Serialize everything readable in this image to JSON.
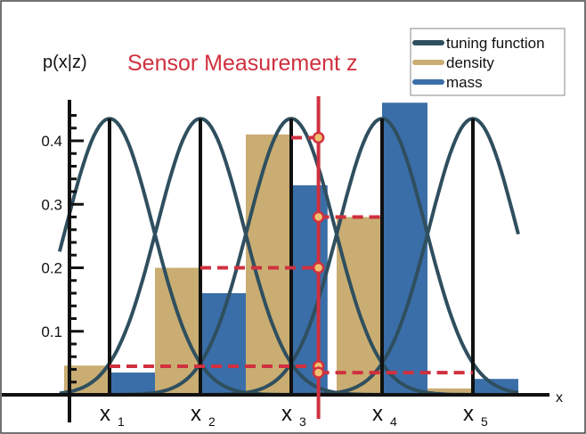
{
  "chart_data": {
    "type": "bar",
    "title": "Sensor Measurement z",
    "ylabel": "p(x|z)",
    "xlabel": "x",
    "ylim": [
      0,
      0.45
    ],
    "yticks": [
      0.1,
      0.2,
      0.3,
      0.4
    ],
    "ytick_labels": [
      "0.1",
      "0.2",
      "0.3",
      "0.4"
    ],
    "x_range": [
      -0.5,
      5.0
    ],
    "nodes": [
      {
        "label_base": "x",
        "label_sub": "1",
        "x": 0.5
      },
      {
        "label_base": "x",
        "label_sub": "2",
        "x": 1.5
      },
      {
        "label_base": "x",
        "label_sub": "3",
        "x": 2.5
      },
      {
        "label_base": "x",
        "label_sub": "4",
        "x": 3.5
      },
      {
        "label_base": "x",
        "label_sub": "5",
        "x": 4.5
      }
    ],
    "tuning_curve": {
      "peak": 0.435,
      "sigma": 0.48
    },
    "measurement_x": 2.8,
    "series": [
      {
        "name": "density",
        "color": "#c9ad72",
        "bars": [
          {
            "x0": 0.0,
            "x1": 0.5,
            "value": 0.046
          },
          {
            "x0": 1.0,
            "x1": 1.5,
            "value": 0.2
          },
          {
            "x0": 2.0,
            "x1": 2.5,
            "value": 0.41
          },
          {
            "x0": 3.0,
            "x1": 3.5,
            "value": 0.28
          },
          {
            "x0": 4.0,
            "x1": 4.5,
            "value": 0.01
          }
        ]
      },
      {
        "name": "mass",
        "color": "#3a6ea8",
        "bars": [
          {
            "x0": 0.5,
            "x1": 1.0,
            "value": 0.035
          },
          {
            "x0": 1.5,
            "x1": 2.0,
            "value": 0.16
          },
          {
            "x0": 2.5,
            "x1": 2.9,
            "value": 0.33
          },
          {
            "x0": 3.5,
            "x1": 4.0,
            "value": 0.46
          },
          {
            "x0": 4.5,
            "x1": 5.0,
            "value": 0.025
          }
        ]
      }
    ],
    "dashed_lines": [
      {
        "y": 0.405,
        "x0": 2.5
      },
      {
        "y": 0.2,
        "x0": 1.5
      },
      {
        "y": 0.045,
        "x0": 0.5
      },
      {
        "y": 0.28,
        "x1": 3.5
      },
      {
        "y": 0.035,
        "x1": 4.5
      }
    ],
    "intersection_points": [
      0.405,
      0.28,
      0.2,
      0.045,
      0.035
    ],
    "legend": {
      "placement": "top-right",
      "items": [
        {
          "label": "tuning function",
          "color": "#2f4f5f"
        },
        {
          "label": "density",
          "color": "#c9ad72"
        },
        {
          "label": "mass",
          "color": "#3a6ea8"
        }
      ]
    },
    "colors": {
      "curve": "#2f4f5f",
      "measurement": "#d0303f",
      "marker_fill": "#f0c070",
      "axis": "#111111",
      "title": "#d0303f"
    }
  }
}
